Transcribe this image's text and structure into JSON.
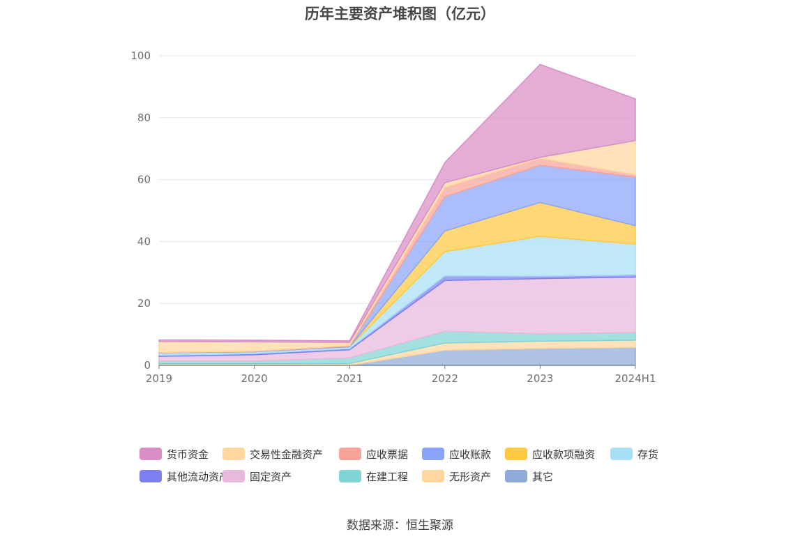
{
  "source": "数据来源：恒生聚源",
  "chart_data": {
    "type": "area",
    "stacked": true,
    "title": "历年主要资产堆积图（亿元）",
    "categories": [
      "2019",
      "2020",
      "2021",
      "2022",
      "2023",
      "2024H1"
    ],
    "y_ticks": [
      "0",
      "20",
      "40",
      "60",
      "80",
      "100"
    ],
    "ylim": [
      0,
      100
    ],
    "grid": true,
    "legend_position": "bottom",
    "series": [
      {
        "name": "其它",
        "color": "#8facd9",
        "values": [
          0.0,
          0.0,
          0.0,
          4.9,
          5.5,
          5.8
        ]
      },
      {
        "name": "无形资产",
        "color": "#ffd79e",
        "values": [
          0.5,
          0.5,
          0.6,
          2.3,
          2.3,
          2.3
        ]
      },
      {
        "name": "在建工程",
        "color": "#80d4d4",
        "values": [
          0.9,
          0.9,
          1.8,
          3.8,
          2.4,
          2.5
        ]
      },
      {
        "name": "固定资产",
        "color": "#e9b9dc",
        "values": [
          1.5,
          2.0,
          2.6,
          16.4,
          17.8,
          17.9
        ]
      },
      {
        "name": "其他流动资产",
        "color": "#7b7ff0",
        "values": [
          0.3,
          0.4,
          0.4,
          1.5,
          0.8,
          0.7
        ]
      },
      {
        "name": "存货",
        "color": "#a8dff7",
        "values": [
          0.8,
          0.6,
          0.6,
          7.8,
          12.9,
          9.9
        ]
      },
      {
        "name": "应收款项融资",
        "color": "#ffc940",
        "values": [
          0.0,
          0.0,
          0.0,
          6.7,
          10.9,
          6.0
        ]
      },
      {
        "name": "应收账款",
        "color": "#8aa4f9",
        "values": [
          0.1,
          0.1,
          0.2,
          11.0,
          12.0,
          15.7
        ]
      },
      {
        "name": "应收票据",
        "color": "#f7a39a",
        "values": [
          0.1,
          0.1,
          0.2,
          3.1,
          2.3,
          0.8
        ]
      },
      {
        "name": "交易性金融资产",
        "color": "#ffd79e",
        "values": [
          3.5,
          3.0,
          1.0,
          1.5,
          0.3,
          11.0
        ]
      },
      {
        "name": "货币资金",
        "color": "#d98dc5",
        "values": [
          0.5,
          0.5,
          0.5,
          6.5,
          30.0,
          13.5
        ]
      }
    ]
  }
}
